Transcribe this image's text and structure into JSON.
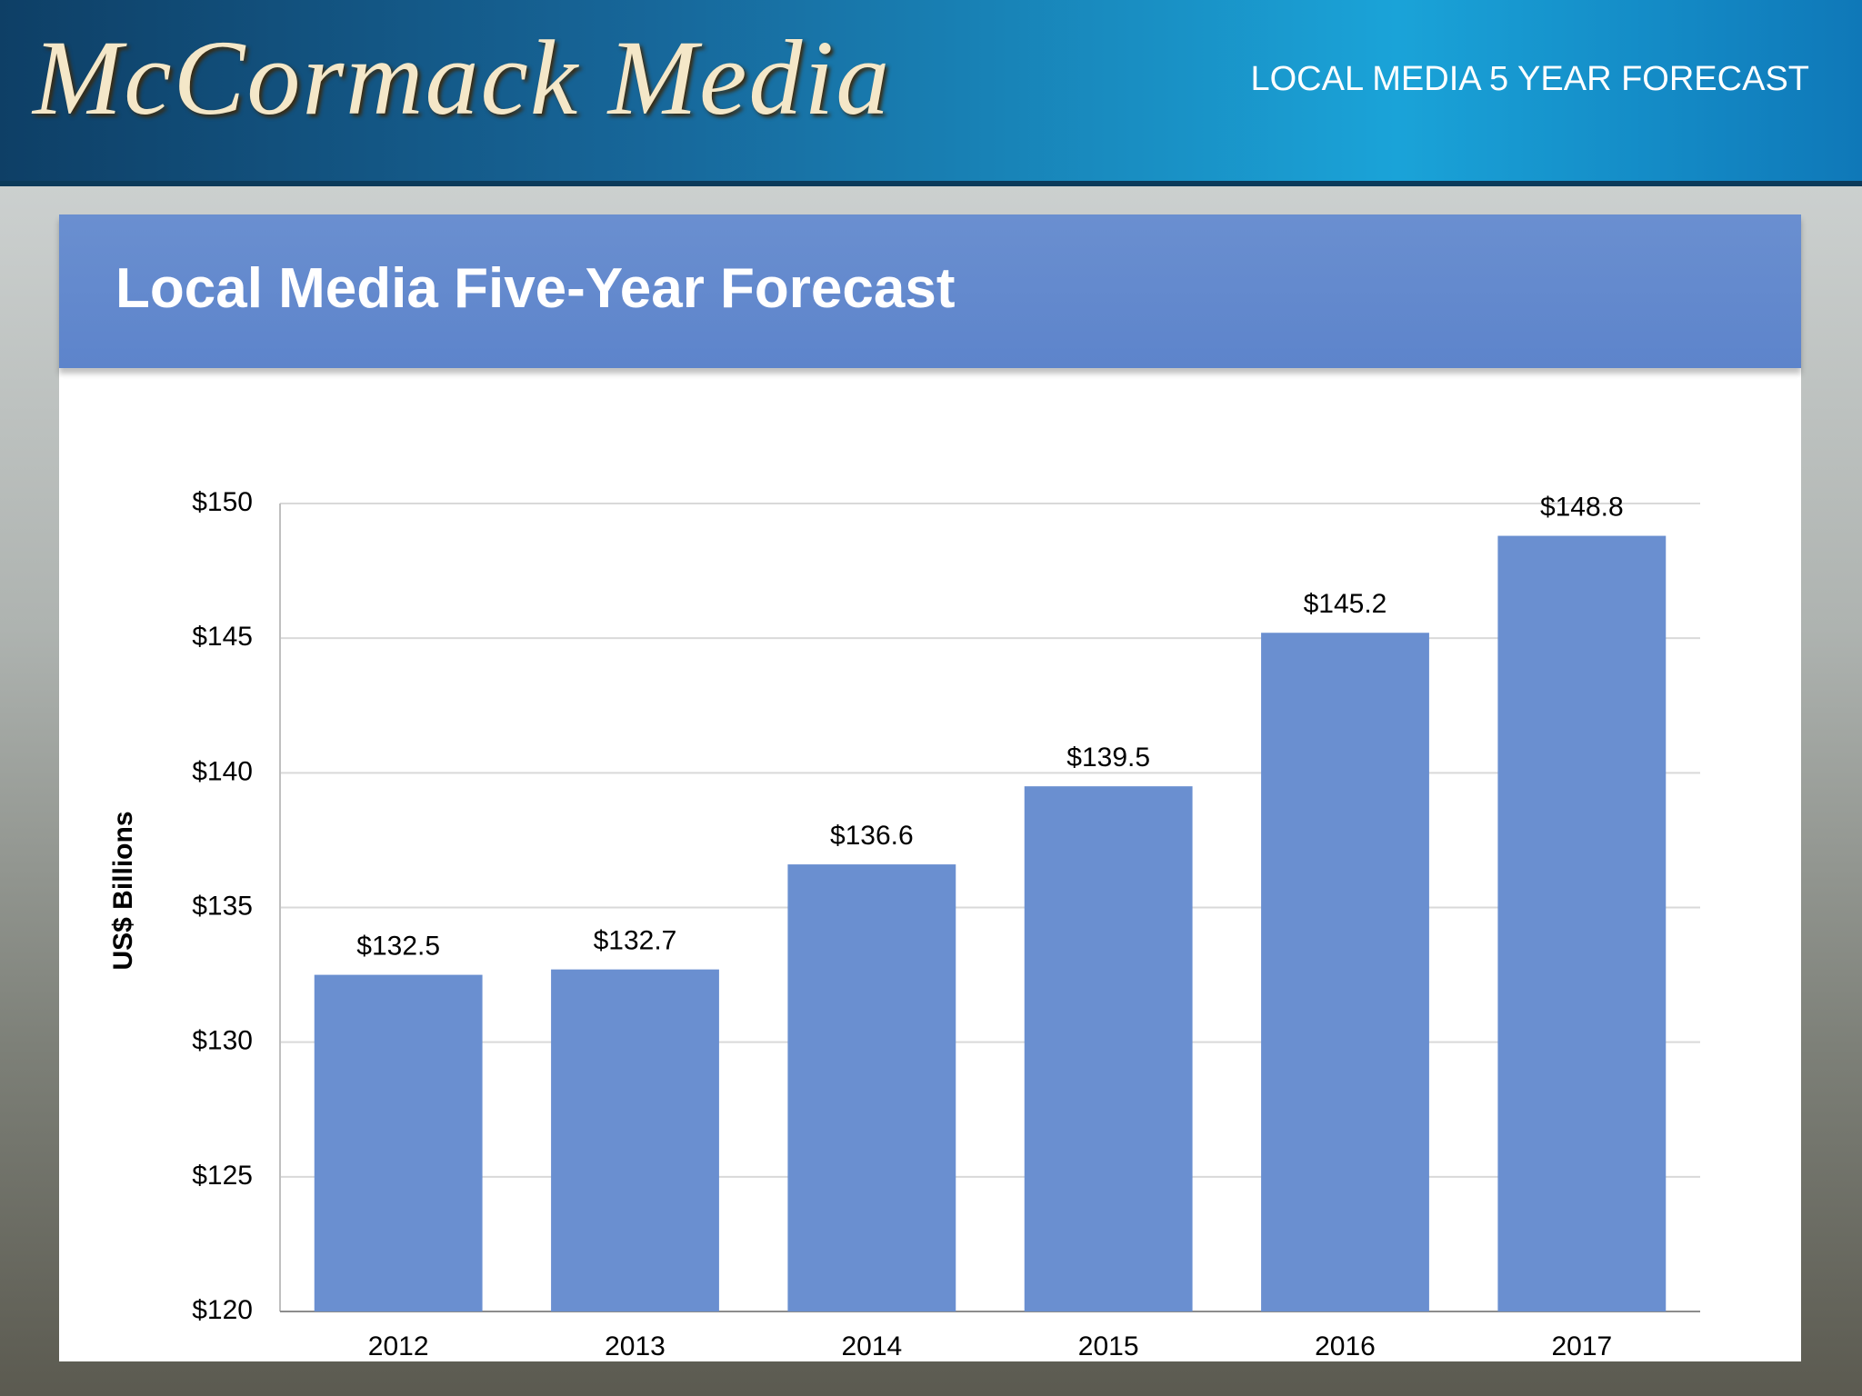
{
  "header": {
    "logo": "McCormack Media",
    "caption": "LOCAL MEDIA 5 YEAR FORECAST"
  },
  "chart_data": {
    "type": "bar",
    "title": "Local Media Five-Year Forecast",
    "y_label": "US$ Billions",
    "categories": [
      "2012",
      "2013",
      "2014",
      "2015",
      "2016",
      "2017"
    ],
    "values": [
      132.5,
      132.7,
      136.6,
      139.5,
      145.2,
      148.8
    ],
    "value_labels": [
      "$132.5",
      "$132.7",
      "$136.6",
      "$139.5",
      "$145.2",
      "$148.8"
    ],
    "color": "#6a8fd0",
    "ylim": [
      120,
      150
    ],
    "yticks": [
      {
        "value": 120,
        "label": "$120"
      },
      {
        "value": 125,
        "label": "$125"
      },
      {
        "value": 130,
        "label": "$130"
      },
      {
        "value": 135,
        "label": "$135"
      },
      {
        "value": 140,
        "label": "$140"
      },
      {
        "value": 145,
        "label": "$145"
      },
      {
        "value": 150,
        "label": "$150"
      }
    ],
    "grid": true
  }
}
